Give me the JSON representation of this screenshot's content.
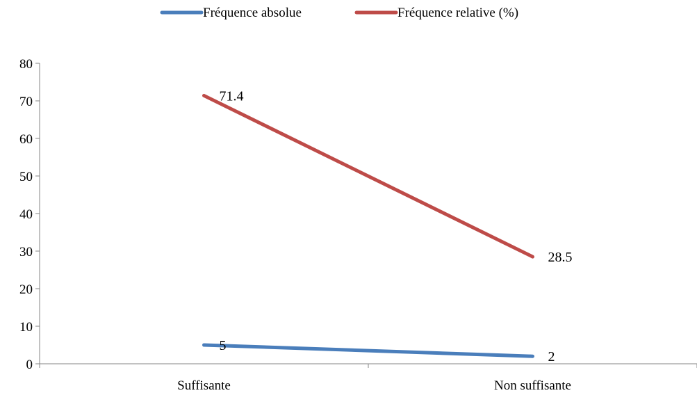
{
  "chart_data": {
    "type": "line",
    "categories": [
      "Suffisante",
      "Non suffisante"
    ],
    "series": [
      {
        "name": "Fréquence absolue",
        "values": [
          5,
          2
        ],
        "color": "#4a7ebb"
      },
      {
        "name": "Fréquence relative (%)",
        "values": [
          71.4,
          28.5
        ],
        "color": "#be4b48"
      }
    ],
    "data_labels": [
      [
        "5",
        "2"
      ],
      [
        "71.4",
        "28.5"
      ]
    ],
    "ylim": [
      0,
      80
    ],
    "yticks": [
      0,
      10,
      20,
      30,
      40,
      50,
      60,
      70,
      80
    ],
    "legend_position": "top",
    "grid": false,
    "axis_color": "#868686"
  }
}
